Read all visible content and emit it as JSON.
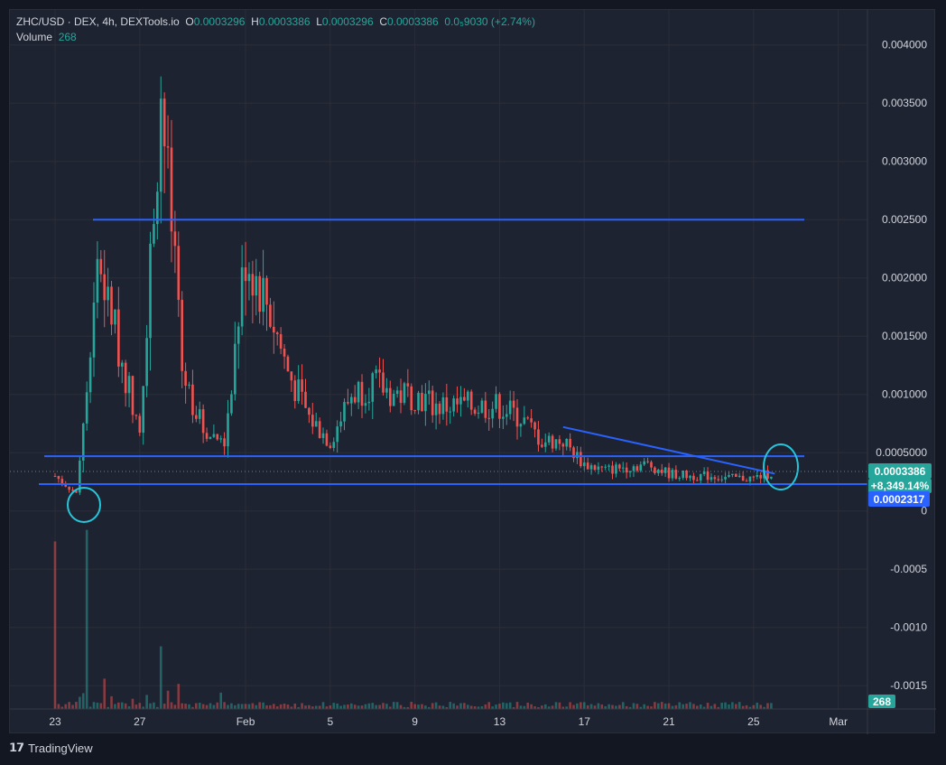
{
  "legend": {
    "symbol": "ZHC/USD · DEX, 4h, DEXTools.io",
    "o_label": "O",
    "o_value": "0.0003296",
    "h_label": "H",
    "h_value": "0.0003386",
    "l_label": "L",
    "l_value": "0.0003296",
    "c_label": "C",
    "c_value": "0.0003386",
    "change": "0.0₅9030 (+2.74%)",
    "volume_label": "Volume",
    "volume_value": "268"
  },
  "price_tags": {
    "last_price": "0.0003386",
    "last_change": "+8,349.14%",
    "level_price": "0.0002317",
    "volume_tag": "268"
  },
  "branding": {
    "text": "TradingView"
  },
  "colors": {
    "up": "#26a69a",
    "down": "#ef5350",
    "trendline": "#2962ff",
    "annotation": "#26c6da",
    "background": "#1e2331",
    "grid": "#2a2e39"
  },
  "chart_data": {
    "type": "candlestick",
    "interval": "4h",
    "x_tick_labels": [
      "23",
      "27",
      "Feb",
      "5",
      "9",
      "13",
      "17",
      "21",
      "25",
      "Mar"
    ],
    "y_tick_labels": [
      "0.004000",
      "0.003500",
      "0.003000",
      "0.002500",
      "0.002000",
      "0.001500",
      "0.001000",
      "0.0005000",
      "0",
      "-0.0005",
      "-0.0010",
      "-0.0015"
    ],
    "ylim": [
      -0.0017,
      0.0043
    ],
    "horizontal_levels": [
      0.0025,
      0.00047,
      0.00023
    ],
    "trendline": {
      "from": [
        "16",
        0.00072
      ],
      "to": [
        "26",
        0.00032
      ]
    },
    "price_series": [
      [
        "23",
        0.0003
      ],
      [
        "24",
        0.00015
      ],
      [
        "24.5",
        0.0011
      ],
      [
        "25",
        0.0022
      ],
      [
        "26",
        0.0014
      ],
      [
        "27",
        0.0007
      ],
      [
        "28",
        0.0036
      ],
      [
        "29",
        0.0012
      ],
      [
        "30",
        0.0007
      ],
      [
        "31",
        0.0006
      ],
      [
        "Feb",
        0.0022
      ],
      [
        "2",
        0.0018
      ],
      [
        "3",
        0.0012
      ],
      [
        "4",
        0.0008
      ],
      [
        "5",
        0.0006
      ],
      [
        "6",
        0.001
      ],
      [
        "7",
        0.0011
      ],
      [
        "8",
        0.001
      ],
      [
        "9",
        0.001
      ],
      [
        "10",
        0.0009
      ],
      [
        "11",
        0.0009
      ],
      [
        "12",
        0.0009
      ],
      [
        "13",
        0.0009
      ],
      [
        "14",
        0.0008
      ],
      [
        "15",
        0.0006
      ],
      [
        "16",
        0.0006
      ],
      [
        "17",
        0.0004
      ],
      [
        "18",
        0.00035
      ],
      [
        "19",
        0.00038
      ],
      [
        "20",
        0.0004
      ],
      [
        "21",
        0.00032
      ],
      [
        "22",
        0.0003
      ],
      [
        "23",
        0.0003
      ],
      [
        "24",
        0.00028
      ],
      [
        "25",
        0.00028
      ],
      [
        "26",
        0.00034
      ]
    ],
    "volume_peaks": [
      [
        "23",
        0.0015
      ],
      [
        "24.5",
        0.0016
      ],
      [
        "28",
        0.0006
      ]
    ]
  }
}
